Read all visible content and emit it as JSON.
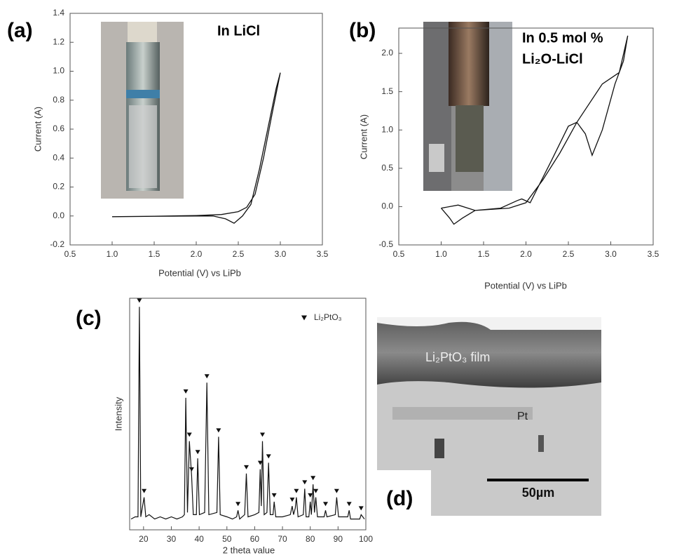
{
  "chart_data": [
    {
      "type": "line",
      "label": "(a)",
      "annotation": [
        "In LiCl"
      ],
      "xlabel": "Potential (V) vs LiPb",
      "ylabel": "Current (A)",
      "xlim": [
        0.5,
        3.5
      ],
      "ylim": [
        -0.2,
        1.4
      ],
      "xticks": [
        0.5,
        {
          "value": 1,
          "label": "1.0"
        },
        1.5,
        {
          "value": 2,
          "label": "2.0"
        },
        2.5,
        {
          "value": 3,
          "label": "3.0"
        },
        3.5
      ],
      "yticks": [
        -0.2,
        {
          "value": 0,
          "label": "0.0"
        },
        0.2,
        0.4,
        0.6,
        0.8,
        {
          "value": 1,
          "label": "1.0"
        },
        1.2,
        1.4
      ],
      "color": "#111111",
      "x": [
        1.0,
        1.5,
        2.0,
        2.3,
        2.5,
        2.6,
        2.7,
        2.8,
        2.9,
        3.0,
        2.95,
        2.85,
        2.75,
        2.65,
        2.55,
        2.45,
        2.35,
        2.2,
        2.0,
        1.5,
        1.0
      ],
      "values": [
        -0.005,
        -0.002,
        0.003,
        0.01,
        0.03,
        0.06,
        0.15,
        0.4,
        0.7,
        0.99,
        0.88,
        0.6,
        0.32,
        0.08,
        0,
        -0.05,
        -0.02,
        0,
        0,
        -0.002,
        -0.005
      ]
    },
    {
      "type": "line",
      "label": "(b)",
      "annotation": [
        "In 0.5 mol %",
        "Li₂O-LiCl"
      ],
      "xlabel": "Potential (V) vs LiPb",
      "ylabel": "Current (A)",
      "xlim": [
        0.5,
        3.5
      ],
      "ylim": [
        -0.5,
        2.33
      ],
      "xticks": [
        0.5,
        {
          "value": 1,
          "label": "1.0"
        },
        1.5,
        {
          "value": 2,
          "label": "2.0"
        },
        2.5,
        {
          "value": 3,
          "label": "3.0"
        },
        3.5
      ],
      "yticks": [
        -0.5,
        {
          "value": 0,
          "label": "0.0"
        },
        0.5,
        {
          "value": 1,
          "label": "1.0"
        },
        1.5,
        {
          "value": 2,
          "label": "2.0"
        }
      ],
      "color": "#111111",
      "x": [
        1.0,
        1.1,
        1.15,
        1.25,
        1.4,
        1.7,
        1.9,
        1.95,
        2.05,
        2.3,
        2.5,
        2.6,
        2.7,
        2.78,
        2.9,
        3.05,
        3.15,
        3.2,
        3.1,
        2.9,
        2.6,
        2.4,
        2.2,
        2.0,
        1.8,
        1.4,
        1.2,
        1.0
      ],
      "values": [
        -0.02,
        -0.15,
        -0.23,
        -0.15,
        -0.05,
        -0.02,
        0.08,
        0.1,
        0.05,
        0.6,
        1.05,
        1.1,
        0.95,
        0.67,
        1.0,
        1.6,
        1.9,
        2.23,
        1.75,
        1.6,
        1.1,
        0.7,
        0.35,
        0.05,
        -0.02,
        -0.05,
        0.02,
        -0.02
      ]
    },
    {
      "type": "line",
      "label": "(c)",
      "xlabel": "2 theta value",
      "ylabel": "Intensity",
      "xlim": [
        15,
        100
      ],
      "ylim": [
        -3,
        104
      ],
      "xticks": [
        20,
        30,
        40,
        50,
        60,
        70,
        80,
        90,
        100
      ],
      "series": [
        {
          "color": "#111111",
          "x": [
            15.5,
            17,
            18,
            18.5,
            19,
            20.2,
            20.8,
            22,
            24,
            26,
            28,
            30,
            32,
            34,
            34.7,
            35.2,
            35.8,
            36.5,
            37.3,
            37.9,
            39,
            39.5,
            40.1,
            42,
            42.8,
            43.5,
            46.4,
            47,
            47.6,
            50,
            52,
            53.5,
            54,
            54.6,
            56.4,
            57,
            57.6,
            60,
            61.5,
            62,
            62.4,
            62.8,
            63.4,
            64.4,
            65,
            65.6,
            66.6,
            67,
            67.6,
            70,
            72.8,
            73.5,
            74,
            74.6,
            75,
            75.6,
            77.5,
            78,
            78.5,
            79.5,
            80,
            80.4,
            81,
            81.5,
            82,
            82.6,
            85,
            85.5,
            86,
            89,
            89.5,
            90.2,
            93.5,
            94,
            94.5,
            97.8,
            98.3,
            99.5
          ],
          "values": [
            2,
            3,
            3,
            100,
            3,
            12,
            3,
            4,
            2,
            3,
            2,
            3,
            2,
            3,
            4,
            58,
            5,
            38,
            22,
            4,
            4,
            30,
            4,
            5,
            65,
            4,
            5,
            40,
            4,
            3,
            2,
            3,
            6,
            2,
            4,
            23,
            3,
            4,
            5,
            25,
            8,
            38,
            4,
            5,
            28,
            4,
            4,
            10,
            3,
            3,
            4,
            8,
            4,
            7,
            12,
            3,
            4,
            16,
            3,
            3,
            10,
            4,
            18,
            5,
            12,
            3,
            3,
            6,
            3,
            4,
            12,
            3,
            3,
            6,
            2,
            2,
            4,
            2
          ]
        },
        {
          "name": "Li₂PtO₃",
          "color": "#111111",
          "marker": "triangle",
          "x": [
            18.5,
            20.2,
            35.2,
            36.5,
            37.3,
            39.5,
            42.8,
            47,
            54,
            57,
            62,
            62.8,
            65,
            67,
            73.5,
            75,
            78,
            80,
            81,
            82,
            85.5,
            89.5,
            94,
            98.3
          ],
          "values": [
            100,
            12,
            58,
            38,
            22,
            30,
            65,
            40,
            6,
            23,
            25,
            38,
            28,
            10,
            8,
            12,
            16,
            10,
            18,
            12,
            6,
            12,
            6,
            4
          ]
        }
      ]
    }
  ],
  "sem_image": {
    "label": "(d)",
    "film_label": "Li₂PtO₃ film",
    "substrate_label": "Pt",
    "scale_bar": "50µm"
  }
}
